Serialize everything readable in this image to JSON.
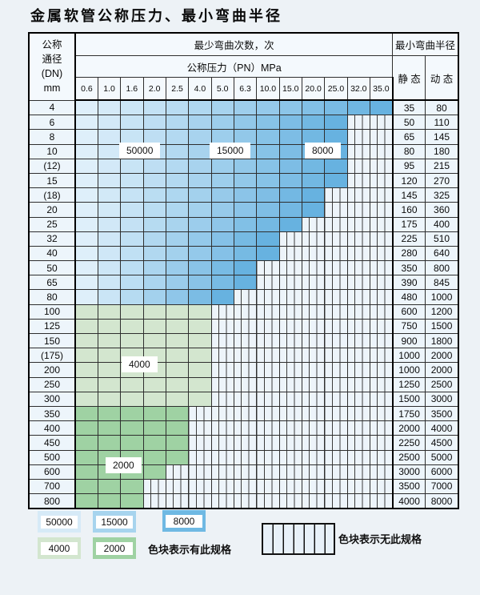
{
  "title": "金属软管公称压力、最小弯曲半径",
  "table": {
    "dn_header": [
      "公称",
      "通径",
      "(DN)",
      "mm"
    ],
    "cycles_header": "最少弯曲次数，次",
    "pressure_header": "公称压力（PN）MPa",
    "radius_header": "最小弯曲半径",
    "static_header": "静 态",
    "dynamic_header": "动 态",
    "pressure_columns": [
      "0.6",
      "1.0",
      "1.6",
      "2.0",
      "2.5",
      "4.0",
      "5.0",
      "6.3",
      "10.0",
      "15.0",
      "20.0",
      "25.0",
      "32.0",
      "35.0"
    ],
    "rows": [
      {
        "dn": "4",
        "band": "blue",
        "colored_through": "35.0",
        "static": "35",
        "dynamic": "80"
      },
      {
        "dn": "6",
        "band": "blue",
        "colored_through": "25.0",
        "static": "50",
        "dynamic": "110"
      },
      {
        "dn": "8",
        "band": "blue",
        "colored_through": "25.0",
        "static": "65",
        "dynamic": "145"
      },
      {
        "dn": "10",
        "band": "blue",
        "colored_through": "25.0",
        "static": "80",
        "dynamic": "180"
      },
      {
        "dn": "(12)",
        "band": "blue",
        "colored_through": "25.0",
        "static": "95",
        "dynamic": "215"
      },
      {
        "dn": "15",
        "band": "blue",
        "colored_through": "25.0",
        "static": "120",
        "dynamic": "270"
      },
      {
        "dn": "(18)",
        "band": "blue",
        "colored_through": "20.0",
        "static": "145",
        "dynamic": "325"
      },
      {
        "dn": "20",
        "band": "blue",
        "colored_through": "20.0",
        "static": "160",
        "dynamic": "360"
      },
      {
        "dn": "25",
        "band": "blue",
        "colored_through": "15.0",
        "static": "175",
        "dynamic": "400"
      },
      {
        "dn": "32",
        "band": "blue",
        "colored_through": "10.0",
        "static": "225",
        "dynamic": "510"
      },
      {
        "dn": "40",
        "band": "blue",
        "colored_through": "10.0",
        "static": "280",
        "dynamic": "640"
      },
      {
        "dn": "50",
        "band": "blue",
        "colored_through": "6.3",
        "static": "350",
        "dynamic": "800"
      },
      {
        "dn": "65",
        "band": "blue",
        "colored_through": "6.3",
        "static": "390",
        "dynamic": "845"
      },
      {
        "dn": "80",
        "band": "blue",
        "colored_through": "5.0",
        "static": "480",
        "dynamic": "1000"
      },
      {
        "dn": "100",
        "band": "green_light",
        "colored_through": "4.0",
        "static": "600",
        "dynamic": "1200"
      },
      {
        "dn": "125",
        "band": "green_light",
        "colored_through": "4.0",
        "static": "750",
        "dynamic": "1500"
      },
      {
        "dn": "150",
        "band": "green_light",
        "colored_through": "4.0",
        "static": "900",
        "dynamic": "1800"
      },
      {
        "dn": "(175)",
        "band": "green_light",
        "colored_through": "4.0",
        "static": "1000",
        "dynamic": "2000"
      },
      {
        "dn": "200",
        "band": "green_light",
        "colored_through": "4.0",
        "static": "1000",
        "dynamic": "2000"
      },
      {
        "dn": "250",
        "band": "green_light",
        "colored_through": "4.0",
        "static": "1250",
        "dynamic": "2500"
      },
      {
        "dn": "300",
        "band": "green_light",
        "colored_through": "4.0",
        "static": "1500",
        "dynamic": "3000"
      },
      {
        "dn": "350",
        "band": "green_dark",
        "colored_through": "2.5",
        "static": "1750",
        "dynamic": "3500"
      },
      {
        "dn": "400",
        "band": "green_dark",
        "colored_through": "2.5",
        "static": "2000",
        "dynamic": "4000"
      },
      {
        "dn": "450",
        "band": "green_dark",
        "colored_through": "2.5",
        "static": "2250",
        "dynamic": "4500"
      },
      {
        "dn": "500",
        "band": "green_dark",
        "colored_through": "2.5",
        "static": "2500",
        "dynamic": "5000"
      },
      {
        "dn": "600",
        "band": "green_dark",
        "colored_through": "2.0",
        "static": "3000",
        "dynamic": "6000"
      },
      {
        "dn": "700",
        "band": "green_dark",
        "colored_through": "1.6",
        "static": "3500",
        "dynamic": "7000"
      },
      {
        "dn": "800",
        "band": "green_dark",
        "colored_through": "1.6",
        "static": "4000",
        "dynamic": "8000"
      }
    ],
    "labels": [
      {
        "text": "50000"
      },
      {
        "text": "15000"
      },
      {
        "text": "8000"
      },
      {
        "text": "4000"
      },
      {
        "text": "2000"
      }
    ]
  },
  "colors": {
    "c50000": "#d6eaf7",
    "c15000": "#a7d4ee",
    "c8000": "#6fb9e3",
    "c4000": "#d3e6cf",
    "c2000": "#9fd2a3",
    "blue_gradient_light": "#deeffa",
    "blue_gradient_dark": "#67b2e0"
  },
  "legend": {
    "swatches": [
      {
        "value": "50000",
        "type": "c50000"
      },
      {
        "value": "15000",
        "type": "c15000"
      },
      {
        "value": "8000",
        "type": "c8000"
      },
      {
        "value": "4000",
        "type": "c4000"
      },
      {
        "value": "2000",
        "type": "c2000"
      }
    ],
    "has_spec_text": "色块表示有此规格",
    "no_spec_text": "色块表示无此规格"
  }
}
